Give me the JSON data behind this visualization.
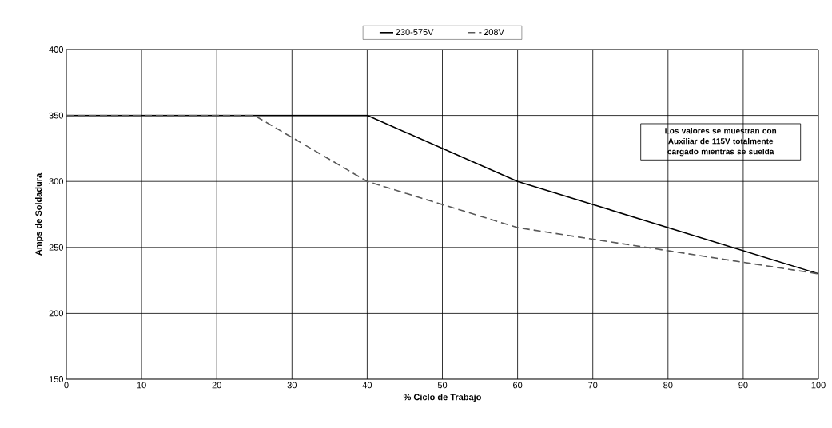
{
  "chart_data": {
    "type": "line",
    "xlabel": "% Ciclo de Trabajo",
    "ylabel": "Amps de Soldadura",
    "series": [
      {
        "name": "230-575V",
        "color": "#000000",
        "line_style": "solid",
        "x": [
          0,
          40,
          60,
          100
        ],
        "values": [
          350,
          350,
          300,
          230
        ]
      },
      {
        "name": "208V",
        "color": "#595959",
        "line_style": "dashed",
        "x": [
          0,
          25,
          40,
          60,
          100
        ],
        "values": [
          350,
          350,
          300,
          265,
          230
        ]
      }
    ],
    "annotations": [
      "Los valores se muestran con Auxiliar de 115V totalmente cargado mientras se suelda"
    ],
    "xlim": [
      0,
      100
    ],
    "ylim": [
      150,
      400
    ],
    "xticks": [
      0,
      10,
      20,
      30,
      40,
      50,
      60,
      70,
      80,
      90,
      100
    ],
    "yticks": [
      150,
      200,
      250,
      300,
      350,
      400
    ],
    "grid": true,
    "legend": "top",
    "marker": "none"
  }
}
